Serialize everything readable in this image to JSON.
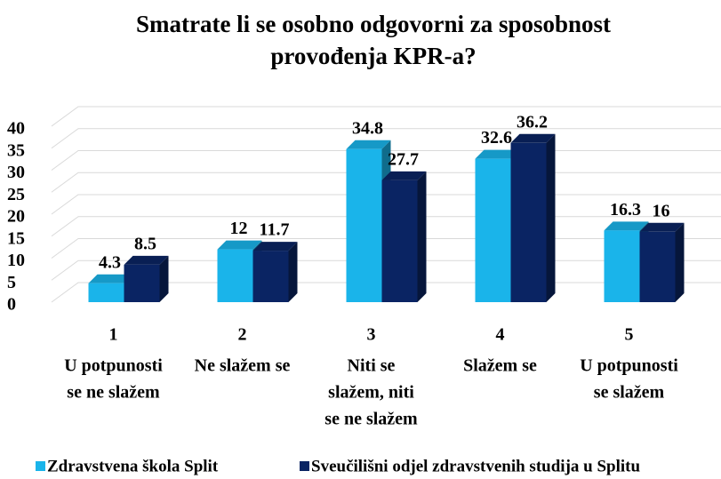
{
  "chart_data": {
    "type": "bar3d",
    "title": [
      "Smatrate li se osobno odgovorni za sposobnost",
      "provođenja KPR-a?"
    ],
    "categories": [
      "1",
      "2",
      "3",
      "4",
      "5"
    ],
    "category_labels": [
      [
        "U potpunosti",
        "se ne slažem"
      ],
      [
        "Ne slažem se"
      ],
      [
        "Niti se",
        "slažem, niti",
        "se ne slažem"
      ],
      [
        "Slažem se"
      ],
      [
        "U potpunosti",
        "se slažem"
      ]
    ],
    "series": [
      {
        "name": "Zdravstvena škola Split",
        "color": "#1ab4ea",
        "values": [
          4.3,
          12,
          34.8,
          32.6,
          16.3
        ]
      },
      {
        "name": "Sveučilišni odjel zdravstvenih studija u Splitu",
        "color": "#0a2463",
        "values": [
          8.5,
          11.7,
          27.7,
          36.2,
          16
        ]
      }
    ],
    "ylim": [
      0,
      40
    ],
    "yticks": [
      0,
      5,
      10,
      15,
      20,
      25,
      30,
      35,
      40
    ],
    "grid": true
  }
}
